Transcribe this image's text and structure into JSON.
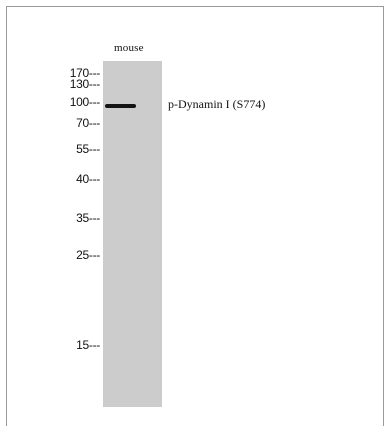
{
  "lane": {
    "label": "mouse"
  },
  "band": {
    "label": "p-Dynamin I (S774)"
  },
  "markers": [
    {
      "label": "170---"
    },
    {
      "label": "130---"
    },
    {
      "label": "100---"
    },
    {
      "label": "70---"
    },
    {
      "label": "55---"
    },
    {
      "label": "40---"
    },
    {
      "label": "35---"
    },
    {
      "label": "25---"
    },
    {
      "label": "15---"
    }
  ]
}
